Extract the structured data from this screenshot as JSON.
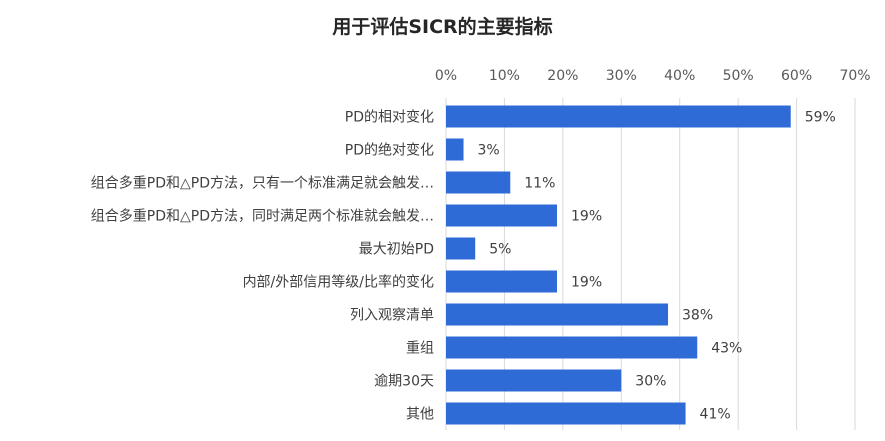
{
  "chart_data": {
    "type": "bar",
    "orientation": "horizontal",
    "title": "用于评估SICR的主要指标",
    "categories": [
      "PD的相对变化",
      "PD的绝对变化",
      "组合多重PD和△PD方法，只有一个标准满足就会触发…",
      "组合多重PD和△PD方法，同时满足两个标准就会触发…",
      "最大初始PD",
      "内部/外部信用等级/比率的变化",
      "列入观察清单",
      "重组",
      "逾期30天",
      "其他"
    ],
    "values": [
      59,
      3,
      11,
      19,
      5,
      19,
      38,
      43,
      30,
      41
    ],
    "value_labels": [
      "59%",
      "3%",
      "11%",
      "19%",
      "5%",
      "19%",
      "38%",
      "43%",
      "30%",
      "41%"
    ],
    "x_ticks": [
      0,
      10,
      20,
      30,
      40,
      50,
      60,
      70
    ],
    "x_tick_labels": [
      "0%",
      "10%",
      "20%",
      "30%",
      "40%",
      "50%",
      "60%",
      "70%"
    ],
    "xlim": [
      0,
      70
    ],
    "x_axis_position": "top",
    "grid": true,
    "bar_color": "#2f6bd6",
    "grid_color": "#d9d9d9"
  }
}
